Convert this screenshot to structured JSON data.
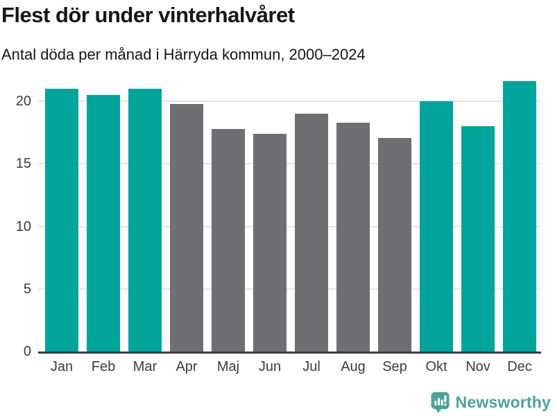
{
  "header": {
    "title": "Flest dör under vinterhalvåret",
    "subtitle": "Antal döda per månad i Härryda kommun, 2000–2024"
  },
  "chart_data": {
    "type": "bar",
    "title": "Flest dör under vinterhalvåret",
    "subtitle": "Antal döda per månad i Härryda kommun, 2000–2024",
    "categories": [
      "Jan",
      "Feb",
      "Mar",
      "Apr",
      "Maj",
      "Jun",
      "Jul",
      "Aug",
      "Sep",
      "Okt",
      "Nov",
      "Dec"
    ],
    "values": [
      21.0,
      20.5,
      21.0,
      19.8,
      17.8,
      17.4,
      19.0,
      18.3,
      17.1,
      20.0,
      18.0,
      21.6
    ],
    "highlighted": [
      true,
      true,
      true,
      false,
      false,
      false,
      false,
      false,
      false,
      true,
      true,
      true
    ],
    "xlabel": "",
    "ylabel": "",
    "yticks": [
      0,
      5,
      10,
      15,
      20
    ],
    "ylim": [
      0,
      21.9
    ],
    "grid": "horizontal",
    "legend": "none",
    "colors": {
      "highlight": "#00a49b",
      "base": "#6e6e73",
      "gridline": "#e5e4e4",
      "axis_line": "#3d3d40",
      "tick_label": "#3c3c3c"
    }
  },
  "footer": {
    "brand": "Newsworthy",
    "brand_color": "#4ba29b",
    "logo_icon": "bar-chart-speech-bubble"
  }
}
